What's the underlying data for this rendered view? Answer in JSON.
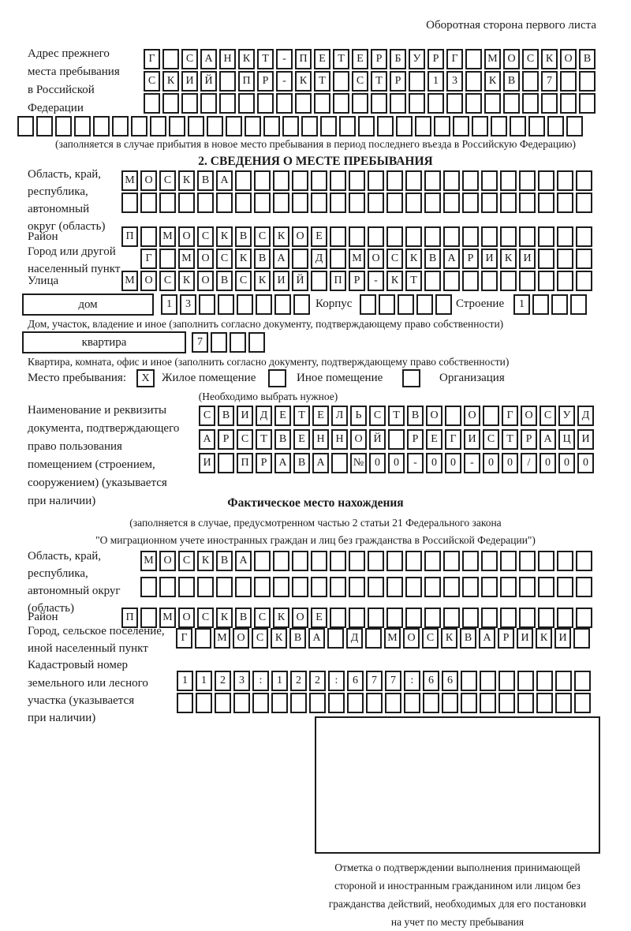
{
  "header": {
    "back_side_note": "Оборотная сторона первого листа"
  },
  "prev_address": {
    "label_lines": [
      "Адрес прежнего",
      "места пребывания",
      "в Российской",
      "Федерации"
    ],
    "row1": [
      "Г",
      "",
      "С",
      "А",
      "Н",
      "К",
      "Т",
      "-",
      "П",
      "Е",
      "Т",
      "Е",
      "Р",
      "Б",
      "У",
      "Р",
      "Г",
      "",
      "М",
      "О",
      "С",
      "К",
      "О",
      "В"
    ],
    "row2": [
      "С",
      "К",
      "И",
      "Й",
      "",
      "П",
      "Р",
      "-",
      "К",
      "Т",
      "",
      "С",
      "Т",
      "Р",
      "",
      "1",
      "3",
      "",
      "К",
      "В",
      "",
      "7",
      "",
      ""
    ],
    "row3": [
      "",
      "",
      "",
      "",
      "",
      "",
      "",
      "",
      "",
      "",
      "",
      "",
      "",
      "",
      "",
      "",
      "",
      "",
      "",
      "",
      "",
      "",
      "",
      ""
    ],
    "row4": [
      "",
      "",
      "",
      "",
      "",
      "",
      "",
      "",
      "",
      "",
      "",
      "",
      "",
      "",
      "",
      "",
      "",
      "",
      "",
      "",
      "",
      "",
      "",
      "",
      "",
      "",
      "",
      "",
      "",
      ""
    ],
    "note": "(заполняется в случае прибытия в новое место пребывания в период последнего въезда в Российскую Федерацию)"
  },
  "section2": {
    "heading": "2. СВЕДЕНИЯ О МЕСТЕ ПРЕБЫВАНИЯ",
    "oblast": {
      "label_lines": [
        "Область, край,",
        "республика,",
        "автономный",
        "округ (область)"
      ],
      "row1": [
        "М",
        "О",
        "С",
        "К",
        "В",
        "А",
        "",
        "",
        "",
        "",
        "",
        "",
        "",
        "",
        "",
        "",
        "",
        "",
        "",
        "",
        "",
        "",
        "",
        "",
        ""
      ],
      "row2": [
        "",
        "",
        "",
        "",
        "",
        "",
        "",
        "",
        "",
        "",
        "",
        "",
        "",
        "",
        "",
        "",
        "",
        "",
        "",
        "",
        "",
        "",
        "",
        "",
        ""
      ]
    },
    "raion": {
      "label": "Район",
      "row": [
        "П",
        "",
        "М",
        "О",
        "С",
        "К",
        "В",
        "С",
        "К",
        "О",
        "Е",
        "",
        "",
        "",
        "",
        "",
        "",
        "",
        "",
        "",
        "",
        "",
        "",
        "",
        ""
      ]
    },
    "gorod": {
      "label_lines": [
        "Город или другой",
        "населенный пункт"
      ],
      "row": [
        "Г",
        "",
        "М",
        "О",
        "С",
        "К",
        "В",
        "А",
        "",
        "Д",
        "",
        "М",
        "О",
        "С",
        "К",
        "В",
        "А",
        "Р",
        "И",
        "К",
        "И",
        "",
        "",
        ""
      ]
    },
    "ulitsa": {
      "label": "Улица",
      "row": [
        "М",
        "О",
        "С",
        "К",
        "О",
        "В",
        "С",
        "К",
        "И",
        "Й",
        "",
        "П",
        "Р",
        "-",
        "К",
        "Т",
        "",
        "",
        "",
        "",
        "",
        "",
        "",
        "",
        ""
      ]
    },
    "dom": {
      "box_label": "дом",
      "cells": [
        "1",
        "3",
        "",
        "",
        "",
        "",
        "",
        ""
      ],
      "korpus_label": "Корпус",
      "korpus_cells": [
        "",
        "",
        "",
        "",
        ""
      ],
      "stroenie_label": "Строение",
      "stroenie_cells": [
        "1",
        "",
        "",
        ""
      ],
      "note": "Дом, участок, владение и иное (заполнить согласно документу, подтверждающему право собственности)"
    },
    "kvartira": {
      "box_label": "квартира",
      "cells": [
        "7",
        "",
        "",
        ""
      ],
      "note": "Квартира, комната, офис и иное (заполнить согласно документу, подтверждающему право собственности)"
    },
    "mesto": {
      "label": "Место пребывания:",
      "options": [
        {
          "label": "Жилое помещение",
          "value": "X"
        },
        {
          "label": "Иное помещение",
          "value": ""
        },
        {
          "label": "Организация",
          "value": ""
        }
      ],
      "note": "(Необходимо выбрать нужное)"
    },
    "document": {
      "label_lines": [
        "Наименование и реквизиты",
        "документа, подтверждающего",
        "право пользования",
        "помещением (строением,",
        "сооружением) (указывается",
        "при наличии)"
      ],
      "row1": [
        "С",
        "В",
        "И",
        "Д",
        "Е",
        "Т",
        "Е",
        "Л",
        "Ь",
        "С",
        "Т",
        "В",
        "О",
        "",
        "О",
        "",
        "Г",
        "О",
        "С",
        "У",
        "Д"
      ],
      "row2": [
        "А",
        "Р",
        "С",
        "Т",
        "В",
        "Е",
        "Н",
        "Н",
        "О",
        "Й",
        "",
        "Р",
        "Е",
        "Г",
        "И",
        "С",
        "Т",
        "Р",
        "А",
        "Ц",
        "И"
      ],
      "row3": [
        "И",
        "",
        "П",
        "Р",
        "А",
        "В",
        "А",
        "",
        "№",
        "0",
        "0",
        "-",
        "0",
        "0",
        "-",
        "0",
        "0",
        "/",
        "0",
        "0",
        "0"
      ]
    }
  },
  "section3": {
    "heading": "Фактическое место нахождения",
    "note_lines": [
      "(заполняется в случае, предусмотренном частью 2 статьи 21 Федерального закона",
      "\"О миграционном учете иностранных граждан и лиц без гражданства в Российской Федерации\")"
    ],
    "oblast": {
      "label_lines": [
        "Область, край,",
        "республика,",
        "автономный округ",
        "(область)"
      ],
      "row1": [
        "М",
        "О",
        "С",
        "К",
        "В",
        "А",
        "",
        "",
        "",
        "",
        "",
        "",
        "",
        "",
        "",
        "",
        "",
        "",
        "",
        "",
        "",
        "",
        "",
        ""
      ],
      "row2": [
        "",
        "",
        "",
        "",
        "",
        "",
        "",
        "",
        "",
        "",
        "",
        "",
        "",
        "",
        "",
        "",
        "",
        "",
        "",
        "",
        "",
        "",
        "",
        ""
      ]
    },
    "raion": {
      "label": "Район",
      "row": [
        "П",
        "",
        "М",
        "О",
        "С",
        "К",
        "В",
        "С",
        "К",
        "О",
        "Е",
        "",
        "",
        "",
        "",
        "",
        "",
        "",
        "",
        "",
        "",
        "",
        "",
        "",
        ""
      ]
    },
    "gorod": {
      "label_lines": [
        "Город, сельское поселение,",
        "иной населенный пункт"
      ],
      "row": [
        "Г",
        "",
        "М",
        "О",
        "С",
        "К",
        "В",
        "А",
        "",
        "Д",
        "",
        "М",
        "О",
        "С",
        "К",
        "В",
        "А",
        "Р",
        "И",
        "К",
        "И",
        ""
      ]
    },
    "kadastr": {
      "label_lines": [
        "Кадастровый номер",
        "земельного или лесного",
        "участка (указывается",
        "при наличии)"
      ],
      "row1": [
        "1",
        "1",
        "2",
        "3",
        ":",
        "1",
        "2",
        "2",
        ":",
        "6",
        "7",
        "7",
        ":",
        "6",
        "6",
        "",
        "",
        "",
        "",
        "",
        "",
        ""
      ],
      "row2": [
        "",
        "",
        "",
        "",
        "",
        "",
        "",
        "",
        "",
        "",
        "",
        "",
        "",
        "",
        "",
        "",
        "",
        "",
        "",
        "",
        "",
        ""
      ]
    }
  },
  "footer": {
    "mark_caption_lines": [
      "Отметка о подтверждении выполнения принимающей",
      "стороной и иностранным гражданином или лицом без",
      "гражданства действий, необходимых для его постановки",
      "на учет по месту пребывания"
    ]
  }
}
